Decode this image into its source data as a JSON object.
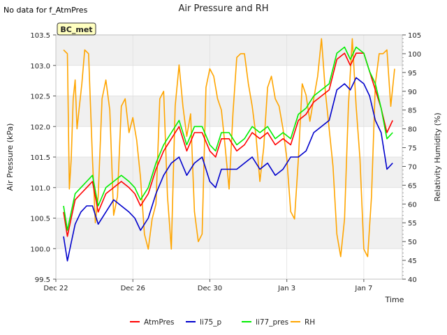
{
  "note": "No data for f_AtmPres",
  "chart_data": {
    "type": "line",
    "title": "Air Pressure and RH",
    "xlabel": "Time",
    "ylabel_left": "Air Pressure (kPa)",
    "ylabel_right": "Relativity Humidity (%)",
    "x_ticks": [
      "Dec 22",
      "Dec 26",
      "Dec 30",
      "Jan 3",
      "Jan 7"
    ],
    "x_tick_days": [
      0,
      4,
      8,
      12,
      16
    ],
    "x_range_days": [
      0,
      18
    ],
    "ylim_left": [
      99.5,
      103.5
    ],
    "ylim_right": [
      40,
      105
    ],
    "y_ticks_left": [
      "99.5",
      "100.0",
      "100.5",
      "101.0",
      "101.5",
      "102.0",
      "102.5",
      "103.0",
      "103.5"
    ],
    "y_ticks_right": [
      "40",
      "45",
      "50",
      "55",
      "60",
      "65",
      "70",
      "75",
      "80",
      "85",
      "90",
      "95",
      "100",
      "105"
    ],
    "grid": true,
    "legend_position": "bottom-center",
    "site_label": "BC_met",
    "series": [
      {
        "name": "AtmPres",
        "axis": "left",
        "color": "#ff0000",
        "x": [
          0.4,
          0.6,
          0.8,
          1.0,
          1.3,
          1.6,
          1.9,
          2.2,
          2.6,
          3.0,
          3.4,
          3.8,
          4.1,
          4.4,
          4.8,
          5.2,
          5.6,
          6.0,
          6.4,
          6.8,
          7.2,
          7.6,
          8.0,
          8.3,
          8.6,
          9.0,
          9.4,
          9.8,
          10.2,
          10.6,
          11.0,
          11.4,
          11.8,
          12.2,
          12.6,
          13.0,
          13.4,
          13.8,
          14.2,
          14.6,
          15.0,
          15.3,
          15.6,
          16.0,
          16.3,
          16.6,
          16.9,
          17.2,
          17.5
        ],
        "y": [
          100.6,
          100.2,
          100.5,
          100.8,
          100.9,
          101.0,
          101.1,
          100.6,
          100.9,
          101.0,
          101.1,
          101.0,
          100.9,
          100.7,
          100.9,
          101.3,
          101.6,
          101.8,
          102.0,
          101.6,
          101.9,
          101.9,
          101.6,
          101.5,
          101.8,
          101.8,
          101.6,
          101.7,
          101.9,
          101.8,
          101.9,
          101.7,
          101.8,
          101.7,
          102.1,
          102.2,
          102.4,
          102.5,
          102.6,
          103.1,
          103.2,
          103.0,
          103.2,
          103.2,
          102.9,
          102.6,
          102.3,
          101.9,
          102.1
        ]
      },
      {
        "name": "li75_p",
        "axis": "left",
        "color": "#0000cc",
        "x": [
          0.4,
          0.6,
          0.8,
          1.0,
          1.3,
          1.6,
          1.9,
          2.2,
          2.6,
          3.0,
          3.4,
          3.8,
          4.1,
          4.4,
          4.8,
          5.2,
          5.6,
          6.0,
          6.4,
          6.8,
          7.2,
          7.6,
          8.0,
          8.3,
          8.6,
          9.0,
          9.4,
          9.8,
          10.2,
          10.6,
          11.0,
          11.4,
          11.8,
          12.2,
          12.6,
          13.0,
          13.4,
          13.8,
          14.2,
          14.6,
          15.0,
          15.3,
          15.6,
          16.0,
          16.3,
          16.6,
          16.9,
          17.2,
          17.5
        ],
        "y": [
          100.2,
          99.8,
          100.1,
          100.4,
          100.6,
          100.7,
          100.7,
          100.4,
          100.6,
          100.8,
          100.7,
          100.6,
          100.5,
          100.3,
          100.5,
          100.9,
          101.2,
          101.4,
          101.5,
          101.2,
          101.4,
          101.5,
          101.1,
          101.0,
          101.3,
          101.3,
          101.3,
          101.4,
          101.5,
          101.3,
          101.4,
          101.2,
          101.3,
          101.5,
          101.5,
          101.6,
          101.9,
          102.0,
          102.1,
          102.6,
          102.7,
          102.6,
          102.8,
          102.7,
          102.5,
          102.1,
          101.9,
          101.3,
          101.4
        ]
      },
      {
        "name": "li77_pres",
        "axis": "left",
        "color": "#00ee00",
        "x": [
          0.4,
          0.6,
          0.8,
          1.0,
          1.3,
          1.6,
          1.9,
          2.2,
          2.6,
          3.0,
          3.4,
          3.8,
          4.1,
          4.4,
          4.8,
          5.2,
          5.6,
          6.0,
          6.4,
          6.8,
          7.2,
          7.6,
          8.0,
          8.3,
          8.6,
          9.0,
          9.4,
          9.8,
          10.2,
          10.6,
          11.0,
          11.4,
          11.8,
          12.2,
          12.6,
          13.0,
          13.4,
          13.8,
          14.2,
          14.6,
          15.0,
          15.3,
          15.6,
          16.0,
          16.3,
          16.6,
          16.9,
          17.2,
          17.5
        ],
        "y": [
          100.7,
          100.3,
          100.6,
          100.9,
          101.0,
          101.1,
          101.2,
          100.7,
          101.0,
          101.1,
          101.2,
          101.1,
          101.0,
          100.8,
          101.0,
          101.4,
          101.7,
          101.9,
          102.1,
          101.7,
          102.0,
          102.0,
          101.7,
          101.6,
          101.9,
          101.9,
          101.7,
          101.8,
          102.0,
          101.9,
          102.0,
          101.8,
          101.9,
          101.8,
          102.2,
          102.3,
          102.5,
          102.6,
          102.7,
          103.2,
          103.3,
          103.1,
          103.3,
          103.2,
          102.9,
          102.7,
          102.3,
          101.8,
          101.9
        ]
      },
      {
        "name": "RH",
        "axis": "right",
        "color": "#ffa500",
        "x": [
          0.4,
          0.6,
          0.7,
          0.8,
          0.9,
          1.0,
          1.1,
          1.2,
          1.35,
          1.5,
          1.7,
          1.9,
          2.05,
          2.2,
          2.4,
          2.6,
          2.8,
          3.0,
          3.2,
          3.4,
          3.6,
          3.8,
          4.0,
          4.2,
          4.4,
          4.6,
          4.8,
          5.0,
          5.2,
          5.4,
          5.6,
          5.8,
          6.0,
          6.2,
          6.4,
          6.6,
          6.8,
          7.0,
          7.2,
          7.4,
          7.6,
          7.8,
          8.0,
          8.2,
          8.4,
          8.6,
          8.8,
          9.0,
          9.2,
          9.4,
          9.6,
          9.8,
          10.0,
          10.2,
          10.4,
          10.6,
          10.8,
          11.0,
          11.2,
          11.4,
          11.6,
          11.8,
          12.0,
          12.2,
          12.4,
          12.6,
          12.8,
          13.0,
          13.2,
          13.4,
          13.6,
          13.8,
          14.0,
          14.2,
          14.4,
          14.6,
          14.8,
          15.0,
          15.2,
          15.4,
          15.6,
          15.8,
          16.0,
          16.2,
          16.4,
          16.6,
          16.8,
          17.0,
          17.2,
          17.4,
          17.6
        ],
        "y": [
          101,
          100,
          64,
          72,
          88,
          93,
          80,
          85,
          92,
          101,
          100,
          72,
          55,
          62,
          88,
          93,
          85,
          57,
          62,
          86,
          88,
          79,
          83,
          77,
          67,
          52,
          48,
          56,
          60,
          88,
          90,
          62,
          48,
          86,
          97,
          86,
          78,
          84,
          58,
          50,
          52,
          91,
          96,
          94,
          88,
          85,
          75,
          64,
          84,
          99,
          100,
          100,
          92,
          86,
          78,
          66,
          75,
          91,
          94,
          88,
          86,
          80,
          72,
          58,
          56,
          72,
          92,
          89,
          82,
          88,
          94,
          104,
          90,
          80,
          70,
          52,
          46,
          56,
          86,
          104,
          86,
          72,
          48,
          46,
          62,
          92,
          100,
          100,
          101,
          86,
          96
        ]
      }
    ]
  }
}
